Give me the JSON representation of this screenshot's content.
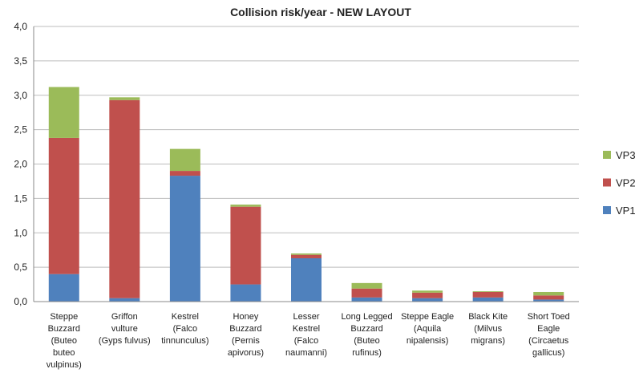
{
  "chart_data": {
    "type": "bar",
    "stacked": true,
    "title": "Collision risk/year - NEW LAYOUT",
    "categories": [
      [
        "Steppe",
        "Buzzard",
        "(Buteo",
        "buteo",
        "vulpinus)"
      ],
      [
        "Griffon",
        "vulture",
        "(Gyps fulvus)"
      ],
      [
        "Kestrel",
        "(Falco",
        "tinnunculus)"
      ],
      [
        "Honey",
        "Buzzard",
        "(Pernis",
        "apivorus)"
      ],
      [
        "Lesser",
        "Kestrel",
        "(Falco",
        "naumanni)"
      ],
      [
        "Long Legged",
        "Buzzard",
        "(Buteo",
        "rufinus)"
      ],
      [
        "Steppe Eagle",
        "(Aquila",
        "nipalensis)"
      ],
      [
        "Black Kite",
        "(Milvus",
        "migrans)"
      ],
      [
        "Short Toed",
        "Eagle",
        "(Circaetus",
        "gallicus)"
      ]
    ],
    "series": [
      {
        "name": "VP1",
        "color": "#4f81bd",
        "values": [
          0.4,
          0.05,
          1.83,
          0.25,
          0.63,
          0.06,
          0.05,
          0.06,
          0.03
        ]
      },
      {
        "name": "VP2",
        "color": "#c0504d",
        "values": [
          1.98,
          2.88,
          0.07,
          1.13,
          0.05,
          0.13,
          0.08,
          0.08,
          0.06
        ]
      },
      {
        "name": "VP3",
        "color": "#9bbb59",
        "values": [
          0.74,
          0.04,
          0.32,
          0.03,
          0.02,
          0.08,
          0.03,
          0.01,
          0.05
        ]
      }
    ],
    "ylim": [
      0,
      4
    ],
    "yticks": [
      {
        "value": 0,
        "label": "0,0"
      },
      {
        "value": 0.5,
        "label": "0,5"
      },
      {
        "value": 1,
        "label": "1,0"
      },
      {
        "value": 1.5,
        "label": "1,5"
      },
      {
        "value": 2,
        "label": "2,0"
      },
      {
        "value": 2.5,
        "label": "2,5"
      },
      {
        "value": 3,
        "label": "3,0"
      },
      {
        "value": 3.5,
        "label": "3,5"
      },
      {
        "value": 4,
        "label": "4,0"
      }
    ],
    "grid": true,
    "legend": "right"
  }
}
